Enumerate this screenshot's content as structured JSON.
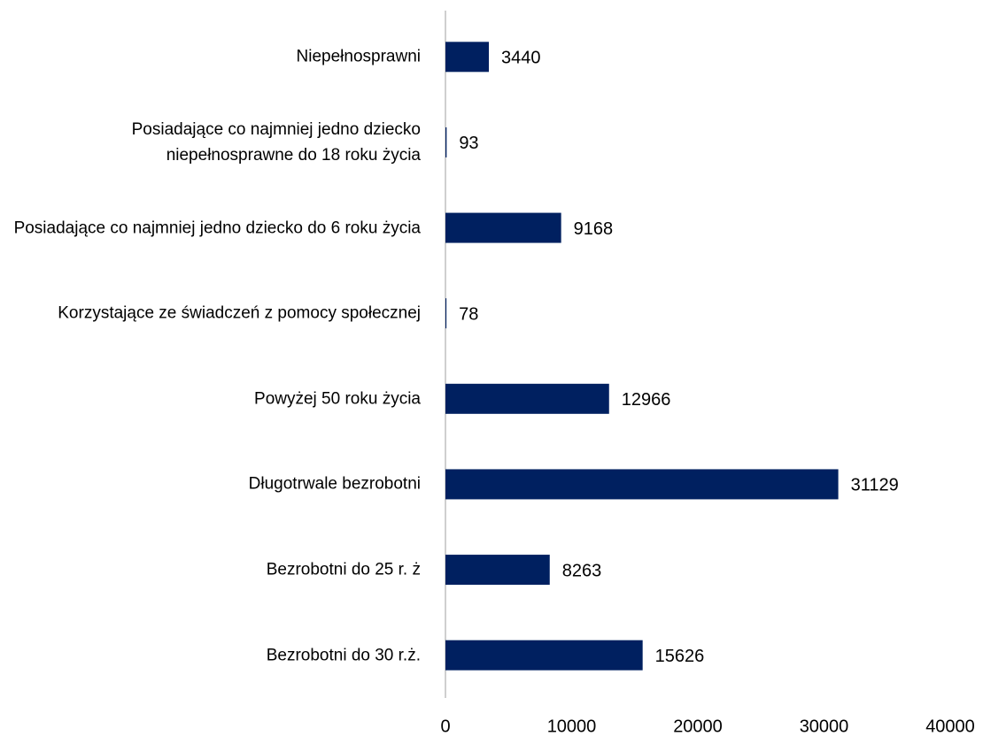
{
  "chart_data": {
    "type": "bar",
    "orientation": "horizontal",
    "categories": [
      "Niepełnosprawni",
      "Posiadające co najmniej jedno dziecko niepełnosprawne do 18 roku życia",
      "Posiadające co najmniej jedno dziecko do 6 roku życia",
      "Korzystające ze świadczeń z pomocy społecznej",
      "Powyżej 50 roku życia",
      "Długotrwale bezrobotni",
      "Bezrobotni do 25 r. ż",
      "Bezrobotni do 30 r.ż."
    ],
    "values": [
      3440,
      93,
      9168,
      78,
      12966,
      31129,
      8263,
      15626
    ],
    "color": "#002060",
    "xlim": [
      0,
      40000
    ],
    "xticks": [
      0,
      10000,
      20000,
      30000,
      40000
    ],
    "grid": false
  }
}
